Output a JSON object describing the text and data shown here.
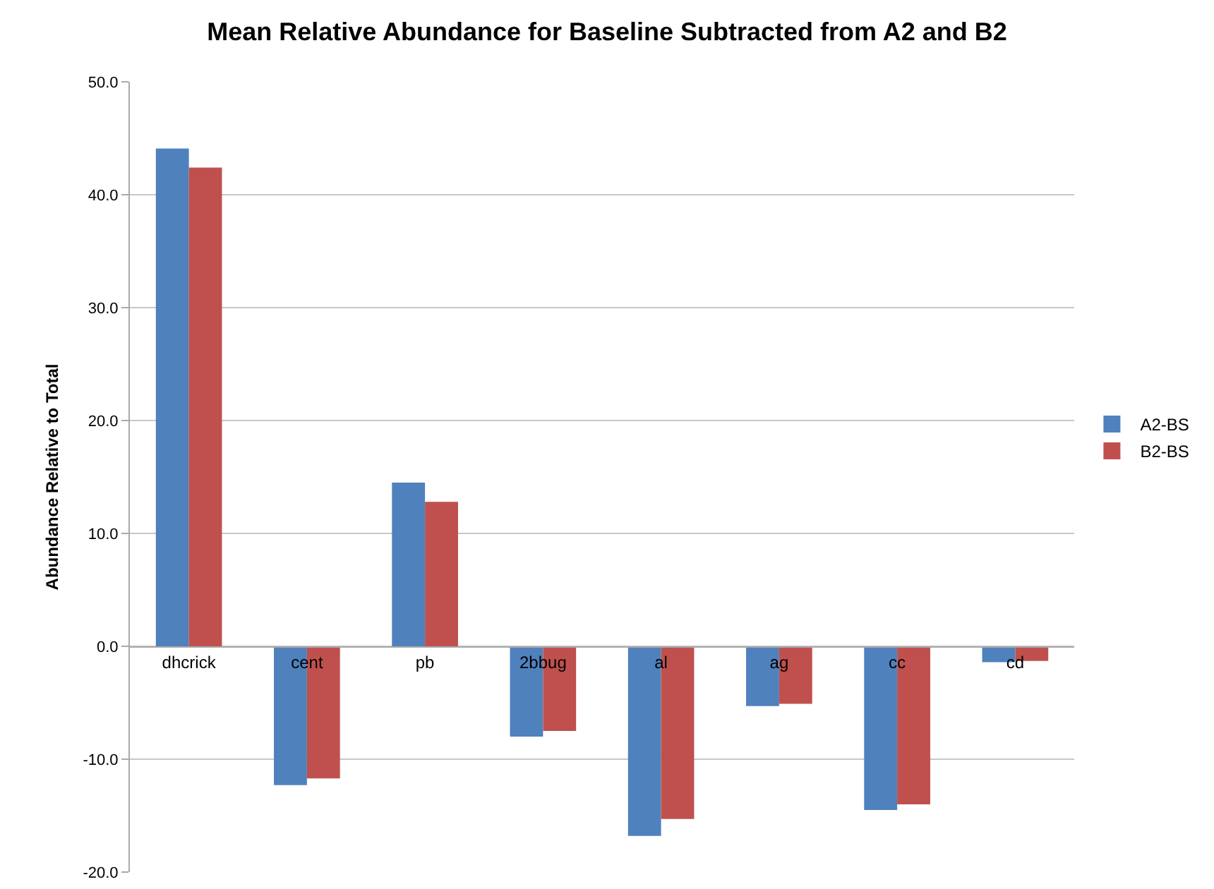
{
  "chart_data": {
    "type": "bar",
    "title": "Mean Relative Abundance for Baseline Subtracted from A2 and B2",
    "ylabel": "Abundance Relative to Total",
    "categories": [
      "dhcrick",
      "cent",
      "pb",
      "2bbug",
      "al",
      "ag",
      "cc",
      "cd"
    ],
    "series": [
      {
        "name": "A2-BS",
        "color": "#4f81bd",
        "values": [
          44.1,
          -12.3,
          14.5,
          -8.0,
          -16.8,
          -5.3,
          -14.5,
          -1.4
        ]
      },
      {
        "name": "B2-BS",
        "color": "#c0504d",
        "values": [
          42.4,
          -11.7,
          12.8,
          -7.5,
          -15.3,
          -5.1,
          -14.0,
          -1.3
        ]
      }
    ],
    "ylim": [
      -20,
      50
    ],
    "yticks": [
      {
        "value": -20,
        "label": "-20.0"
      },
      {
        "value": -10,
        "label": "-10.0"
      },
      {
        "value": 0,
        "label": "0.0"
      },
      {
        "value": 10,
        "label": "10.0"
      },
      {
        "value": 20,
        "label": "20.0"
      },
      {
        "value": 30,
        "label": "30.0"
      },
      {
        "value": 40,
        "label": "40.0"
      },
      {
        "value": 50,
        "label": "50.0"
      }
    ],
    "grid": "y",
    "legend": "right"
  }
}
